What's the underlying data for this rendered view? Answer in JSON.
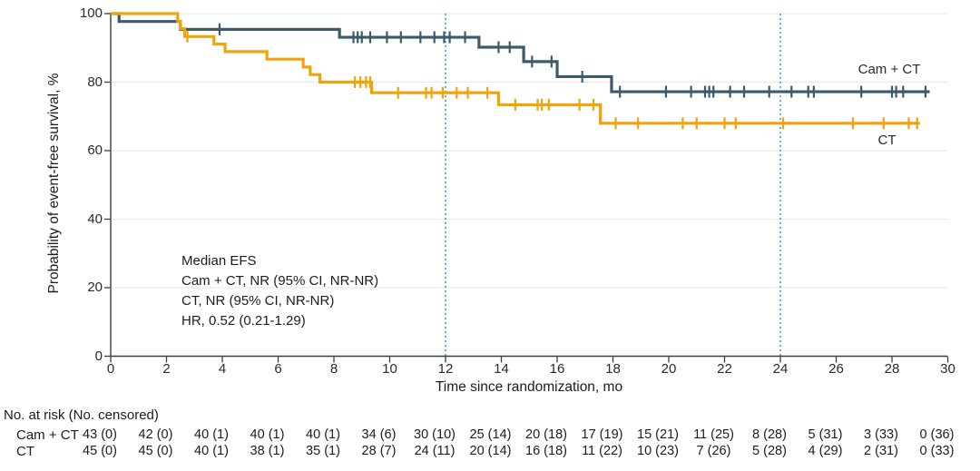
{
  "colors": {
    "cam_ct": "#3d5a6c",
    "ct": "#f2a30b",
    "reference_line": "#41aede",
    "grid": "#eaeaea",
    "axis": "#3c3c3c",
    "text": "#1c1c1c"
  },
  "chart_data": {
    "type": "line",
    "subtype": "kaplan-meier-step-curves",
    "title": "",
    "xlabel": "Time since randomization, mo",
    "ylabel": "Probability of event-free survival, %",
    "xlim": [
      0,
      30
    ],
    "ylim": [
      0,
      100
    ],
    "xticks": [
      0,
      2,
      4,
      6,
      8,
      10,
      12,
      14,
      16,
      18,
      20,
      22,
      24,
      26,
      28,
      30
    ],
    "yticks": [
      0,
      20,
      40,
      60,
      80,
      100
    ],
    "grid": "horizontal",
    "reference_lines_x": [
      12,
      24
    ],
    "annotation": {
      "lines": [
        "Median EFS",
        "Cam + CT, NR (95% CI, NR-NR)",
        "CT, NR (95% CI, NR-NR)",
        "HR, 0.52 (0.21-1.29)"
      ]
    },
    "series": [
      {
        "name": "Cam + CT",
        "color": "#3d5a6c",
        "end_x": 29.35,
        "steps": [
          [
            0,
            100
          ],
          [
            0.3,
            97.7
          ],
          [
            2.5,
            95.4
          ],
          [
            8.2,
            93.1
          ],
          [
            13.2,
            90.2
          ],
          [
            14.8,
            86.0
          ],
          [
            16.0,
            81.6
          ],
          [
            17.95,
            77.2
          ]
        ],
        "censors": [
          3.9,
          8.7,
          8.85,
          9.0,
          9.3,
          9.9,
          10.4,
          11.1,
          11.6,
          11.95,
          12.15,
          12.7,
          13.9,
          14.3,
          15.1,
          15.8,
          16.9,
          18.25,
          19.9,
          20.8,
          21.3,
          21.45,
          21.6,
          22.2,
          22.7,
          23.6,
          24.4,
          25.0,
          25.2,
          26.9,
          28.0,
          28.15,
          28.4,
          29.2
        ]
      },
      {
        "name": "CT",
        "color": "#f2a30b",
        "end_x": 29.0,
        "steps": [
          [
            0,
            100
          ],
          [
            2.4,
            97.8
          ],
          [
            2.5,
            95.6
          ],
          [
            2.65,
            93.3
          ],
          [
            3.7,
            91.1
          ],
          [
            4.1,
            88.9
          ],
          [
            5.6,
            86.7
          ],
          [
            6.9,
            84.4
          ],
          [
            7.15,
            82.2
          ],
          [
            7.5,
            80.0
          ],
          [
            9.35,
            76.9
          ],
          [
            13.9,
            73.4
          ],
          [
            17.55,
            68.0
          ]
        ],
        "censors": [
          2.75,
          8.75,
          8.95,
          9.15,
          9.3,
          10.3,
          11.3,
          11.5,
          11.9,
          12.4,
          12.8,
          13.5,
          14.5,
          15.3,
          15.45,
          15.7,
          16.8,
          17.3,
          18.1,
          18.9,
          20.5,
          21.0,
          22.0,
          22.4,
          24.1,
          26.6,
          27.7,
          28.6,
          28.9
        ]
      }
    ]
  },
  "risk_table": {
    "title": "No. at risk (No. censored)",
    "time_points": [
      0,
      2,
      4,
      6,
      8,
      10,
      12,
      14,
      16,
      18,
      20,
      22,
      24,
      26,
      28,
      30
    ],
    "rows": [
      {
        "label": "Cam + CT",
        "values": [
          "43 (0)",
          "42 (0)",
          "40 (1)",
          "40 (1)",
          "40 (1)",
          "34 (6)",
          "30 (10)",
          "25 (14)",
          "20 (18)",
          "17 (19)",
          "15 (21)",
          "11 (25)",
          "8 (28)",
          "5 (31)",
          "3 (33)",
          "0 (36)"
        ]
      },
      {
        "label": "CT",
        "values": [
          "45 (0)",
          "45 (0)",
          "40 (1)",
          "38 (1)",
          "35 (1)",
          "28 (7)",
          "24 (11)",
          "20 (14)",
          "16 (18)",
          "11 (22)",
          "10 (23)",
          "7 (26)",
          "5 (28)",
          "4 (29)",
          "2 (31)",
          "0 (33)"
        ]
      }
    ]
  }
}
